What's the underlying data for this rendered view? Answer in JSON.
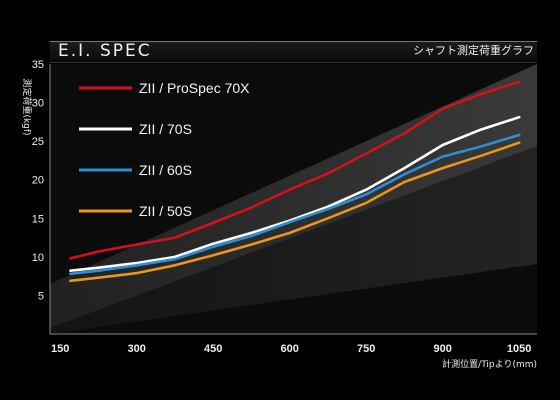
{
  "header": {
    "title": "E.I. SPEC",
    "subtitle": "シャフト測定荷重グラフ"
  },
  "chart_data": {
    "type": "line",
    "title": "E.I. SPEC",
    "subtitle": "シャフト測定荷重グラフ",
    "xlabel": "計測位置/Tipより(mm)",
    "ylabel": "測定荷重(kgf)",
    "xlim": [
      130,
      1085
    ],
    "ylim": [
      0,
      35
    ],
    "xticks": [
      150,
      300,
      450,
      600,
      750,
      900,
      1050
    ],
    "yticks": [
      5,
      10,
      15,
      20,
      25,
      30,
      35
    ],
    "grid": false,
    "legend_position": "top-left",
    "x": [
      170,
      225,
      300,
      375,
      450,
      525,
      600,
      675,
      750,
      825,
      900,
      975,
      1050
    ],
    "series": [
      {
        "name": "ZII / ProSpec 70X",
        "color": "#d3111c",
        "values": [
          9.8,
          10.7,
          11.6,
          12.5,
          14.4,
          16.4,
          18.7,
          20.8,
          23.4,
          26.0,
          29.2,
          31.1,
          32.7
        ]
      },
      {
        "name": "ZII / 70S",
        "color": "#ffffff",
        "values": [
          8.2,
          8.6,
          9.2,
          10.0,
          11.7,
          13.1,
          14.7,
          16.5,
          18.7,
          21.5,
          24.5,
          26.5,
          28.1
        ]
      },
      {
        "name": "ZII / 60S",
        "color": "#2b8fd8",
        "values": [
          7.8,
          8.2,
          8.9,
          9.7,
          11.3,
          12.7,
          14.5,
          16.2,
          18.1,
          20.7,
          23.0,
          24.3,
          25.8
        ]
      },
      {
        "name": "ZII / 50S",
        "color": "#e8961e",
        "values": [
          6.9,
          7.3,
          7.9,
          8.9,
          10.2,
          11.6,
          13.1,
          15.0,
          17.0,
          19.7,
          21.5,
          23.1,
          24.8
        ]
      }
    ]
  }
}
